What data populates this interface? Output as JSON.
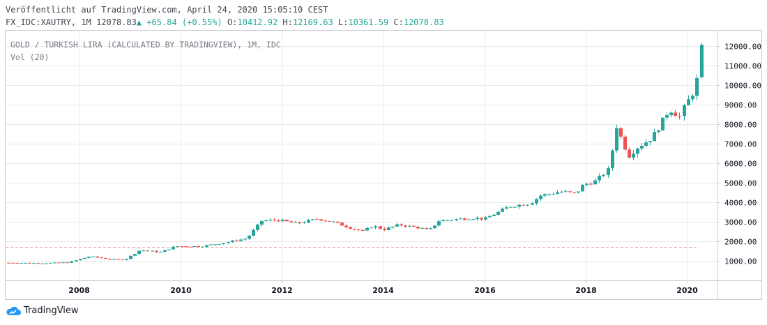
{
  "header": {
    "published": "Veröffentlicht auf TradingView.com, April 24, 2020 15:05:10 CEST",
    "symbol": "FX_IDC:XAUTRY, 1M",
    "last": "12078.83",
    "change": "+65.84 (+0.55%)",
    "o_label": "O:",
    "o_value": "10412.92",
    "h_label": "H:",
    "h_value": "12169.63",
    "l_label": "L:",
    "l_value": "10361.59",
    "c_label": "C:",
    "c_value": "12078.83"
  },
  "legend": {
    "title": "GOLD / TURKISH LIRA (CALCULATED BY TRADINGVIEW), 1M, IDC",
    "volume": "Vol (20)"
  },
  "branding": {
    "logo_text": "TradingView"
  },
  "colors": {
    "up": "#26a69a",
    "down": "#ef5350",
    "grid": "#e9e9ea",
    "axis": "#787b86"
  },
  "chart_data": {
    "type": "candlestick",
    "title": "GOLD / TURKISH LIRA (CALCULATED BY TRADINGVIEW), 1M, IDC",
    "interval": "1M",
    "ylim": [
      0,
      12800
    ],
    "yticks": [
      1000,
      2000,
      3000,
      4000,
      5000,
      6000,
      7000,
      8000,
      9000,
      10000,
      11000,
      12000
    ],
    "ytick_labels": [
      "1000.00",
      "2000.00",
      "3000.00",
      "4000.00",
      "5000.00",
      "6000.00",
      "7000.00",
      "8000.00",
      "9000.00",
      "10000.00",
      "11000.00",
      "12000.00"
    ],
    "xlim": [
      2006.55,
      2020.6
    ],
    "xticks": [
      2008,
      2010,
      2012,
      2014,
      2016,
      2018,
      2020
    ],
    "xtick_labels": [
      "2008",
      "2010",
      "2012",
      "2014",
      "2016",
      "2018",
      "2020"
    ],
    "reference_line": 1720,
    "close_anchors": [
      [
        2006.6,
        900
      ],
      [
        2007.3,
        880
      ],
      [
        2007.8,
        920
      ],
      [
        2008.2,
        1230
      ],
      [
        2008.6,
        1080
      ],
      [
        2008.9,
        1060
      ],
      [
        2009.2,
        1550
      ],
      [
        2009.6,
        1450
      ],
      [
        2009.9,
        1750
      ],
      [
        2010.4,
        1740
      ],
      [
        2010.9,
        1950
      ],
      [
        2011.3,
        2150
      ],
      [
        2011.6,
        3050
      ],
      [
        2011.9,
        3100
      ],
      [
        2012.3,
        2920
      ],
      [
        2012.7,
        3150
      ],
      [
        2013.0,
        3000
      ],
      [
        2013.4,
        2650
      ],
      [
        2013.6,
        2520
      ],
      [
        2013.8,
        2800
      ],
      [
        2014.0,
        2600
      ],
      [
        2014.3,
        2850
      ],
      [
        2014.7,
        2700
      ],
      [
        2014.9,
        2550
      ],
      [
        2015.1,
        3050
      ],
      [
        2015.5,
        3150
      ],
      [
        2015.8,
        3200
      ],
      [
        2016.0,
        3150
      ],
      [
        2016.5,
        3800
      ],
      [
        2016.9,
        3950
      ],
      [
        2017.1,
        4350
      ],
      [
        2017.5,
        4550
      ],
      [
        2017.8,
        4450
      ],
      [
        2017.95,
        4900
      ],
      [
        2018.2,
        5100
      ],
      [
        2018.45,
        5700
      ],
      [
        2018.6,
        7900
      ],
      [
        2018.75,
        6900
      ],
      [
        2018.85,
        6400
      ],
      [
        2019.0,
        6800
      ],
      [
        2019.3,
        7300
      ],
      [
        2019.5,
        8100
      ],
      [
        2019.65,
        8800
      ],
      [
        2019.85,
        8400
      ],
      [
        2020.0,
        9150
      ],
      [
        2020.1,
        9600
      ],
      [
        2020.2,
        10400
      ],
      [
        2020.28,
        12079
      ]
    ],
    "last_candle": {
      "open": 10412.92,
      "high": 12169.63,
      "low": 10361.59,
      "close": 12078.83
    }
  }
}
